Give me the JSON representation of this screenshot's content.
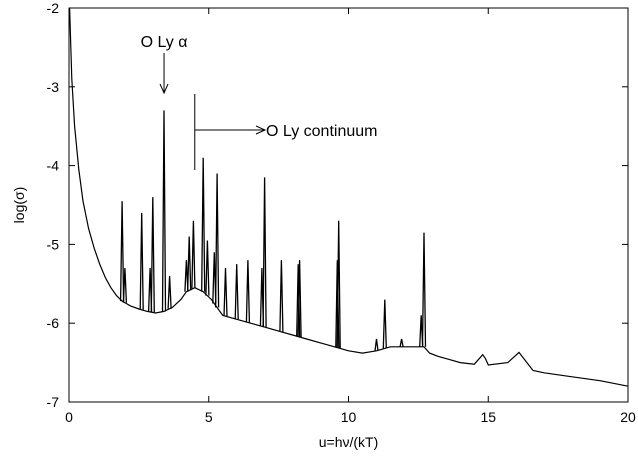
{
  "chart_data": {
    "type": "line",
    "xlabel": "u=hν/(kT)",
    "ylabel": "log(σ)",
    "xlim": [
      0,
      20
    ],
    "ylim": [
      -7,
      -2
    ],
    "xticks": [
      0,
      5,
      10,
      15,
      20
    ],
    "yticks": [
      -2,
      -3,
      -4,
      -5,
      -6,
      -7
    ],
    "grid": false,
    "annotations": [
      {
        "text": "O Ly α",
        "points_to": [
          3.4,
          -3.35
        ]
      },
      {
        "text": "O Ly continuum",
        "marker_at": [
          4.5,
          -3.3
        ]
      }
    ],
    "continuum": {
      "x": [
        0.02,
        0.1,
        0.2,
        0.35,
        0.5,
        0.7,
        0.9,
        1.1,
        1.3,
        1.5,
        1.7,
        1.9,
        2.2,
        2.5,
        2.8,
        3.1,
        3.4,
        3.7,
        4.0,
        4.2,
        4.5,
        4.8,
        5.1,
        5.5,
        6.0,
        6.5,
        7.0,
        7.5,
        8.0,
        8.5,
        9.0,
        9.5,
        10.0,
        10.5,
        11.0,
        11.5,
        12.0,
        12.5,
        12.7,
        12.9,
        13.2,
        13.6,
        14.0,
        14.5,
        14.8,
        14.9,
        15.0,
        15.7,
        16.1,
        16.6,
        17.0,
        18.0,
        19.0,
        20.0
      ],
      "y": [
        -2.0,
        -2.9,
        -3.5,
        -4.05,
        -4.45,
        -4.8,
        -5.05,
        -5.25,
        -5.42,
        -5.55,
        -5.65,
        -5.72,
        -5.78,
        -5.82,
        -5.85,
        -5.87,
        -5.85,
        -5.8,
        -5.7,
        -5.6,
        -5.55,
        -5.6,
        -5.7,
        -5.9,
        -5.95,
        -6.0,
        -6.05,
        -6.1,
        -6.15,
        -6.2,
        -6.25,
        -6.3,
        -6.35,
        -6.38,
        -6.35,
        -6.3,
        -6.3,
        -6.3,
        -6.3,
        -6.38,
        -6.42,
        -6.46,
        -6.5,
        -6.52,
        -6.4,
        -6.45,
        -6.53,
        -6.5,
        -6.37,
        -6.6,
        -6.63,
        -6.68,
        -6.73,
        -6.8
      ]
    },
    "lines": [
      {
        "x": 1.9,
        "y": -4.45
      },
      {
        "x": 2.0,
        "y": -5.3
      },
      {
        "x": 2.6,
        "y": -4.6
      },
      {
        "x": 2.9,
        "y": -5.3
      },
      {
        "x": 3.0,
        "y": -4.4
      },
      {
        "x": 3.4,
        "y": -3.3
      },
      {
        "x": 3.6,
        "y": -5.4
      },
      {
        "x": 4.2,
        "y": -5.2
      },
      {
        "x": 4.3,
        "y": -4.9
      },
      {
        "x": 4.45,
        "y": -4.7
      },
      {
        "x": 4.8,
        "y": -3.9
      },
      {
        "x": 4.95,
        "y": -4.95
      },
      {
        "x": 5.2,
        "y": -5.1
      },
      {
        "x": 5.3,
        "y": -4.1
      },
      {
        "x": 5.6,
        "y": -5.3
      },
      {
        "x": 6.0,
        "y": -5.25
      },
      {
        "x": 6.4,
        "y": -5.2
      },
      {
        "x": 6.9,
        "y": -5.3
      },
      {
        "x": 7.0,
        "y": -4.15
      },
      {
        "x": 7.6,
        "y": -5.2
      },
      {
        "x": 8.2,
        "y": -5.25
      },
      {
        "x": 8.25,
        "y": -5.2
      },
      {
        "x": 9.6,
        "y": -5.2
      },
      {
        "x": 9.65,
        "y": -4.7
      },
      {
        "x": 11.0,
        "y": -6.2
      },
      {
        "x": 11.3,
        "y": -5.7
      },
      {
        "x": 11.9,
        "y": -6.2
      },
      {
        "x": 12.6,
        "y": -5.9
      },
      {
        "x": 12.7,
        "y": -4.85
      }
    ]
  }
}
